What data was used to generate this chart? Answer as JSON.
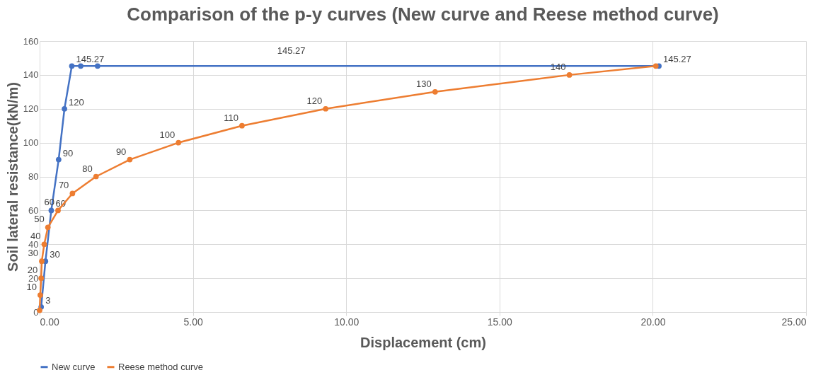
{
  "chart_data": {
    "type": "line",
    "title": "Comparison of the p-y curves (New curve and Reese method curve)",
    "xlabel": "Displacement (cm)",
    "ylabel": "Soil lateral resistance(kN/m)",
    "xlim": [
      0,
      25
    ],
    "xticks": [
      {
        "value": 0,
        "label": "0.00"
      },
      {
        "value": 5,
        "label": "5.00"
      },
      {
        "value": 10,
        "label": "10.00"
      },
      {
        "value": 15,
        "label": "15.00"
      },
      {
        "value": 20,
        "label": "20.00"
      },
      {
        "value": 25,
        "label": "25.00"
      }
    ],
    "ylim": [
      0,
      160
    ],
    "yticks": [
      0,
      20,
      40,
      60,
      80,
      100,
      120,
      140,
      160
    ],
    "grid": true,
    "legend": "bottom",
    "marker": "circle",
    "line_style": "solid",
    "series": [
      {
        "name": "New curve",
        "color": "#4472c4",
        "x": [
          0.05,
          0.19,
          0.38,
          0.62,
          0.81,
          1.05,
          1.34,
          1.89,
          20.2
        ],
        "values": [
          3,
          30,
          60,
          90,
          120,
          145.27,
          145.27,
          145.27,
          145.27
        ],
        "value_labels": [
          "3",
          "30",
          "60",
          "90",
          "120",
          "145.27",
          null,
          null,
          "145.27"
        ]
      },
      {
        "name": "Reese method curve",
        "color": "#ed7d31",
        "x": [
          0,
          0.02,
          0.05,
          0.07,
          0.15,
          0.27,
          0.6,
          1.07,
          1.84,
          2.94,
          4.53,
          6.6,
          9.33,
          12.9,
          17.28,
          20.1
        ],
        "values": [
          1,
          10,
          20,
          30,
          40,
          50,
          60,
          70,
          80,
          90,
          100,
          110,
          120,
          130,
          140,
          145.27
        ],
        "value_labels": [
          null,
          "10",
          "20",
          "30",
          "40",
          "50",
          "60",
          "70",
          "80",
          "90",
          "100",
          "110",
          "120",
          "130",
          "140",
          null
        ]
      }
    ],
    "annotations": [
      "145.27"
    ]
  }
}
